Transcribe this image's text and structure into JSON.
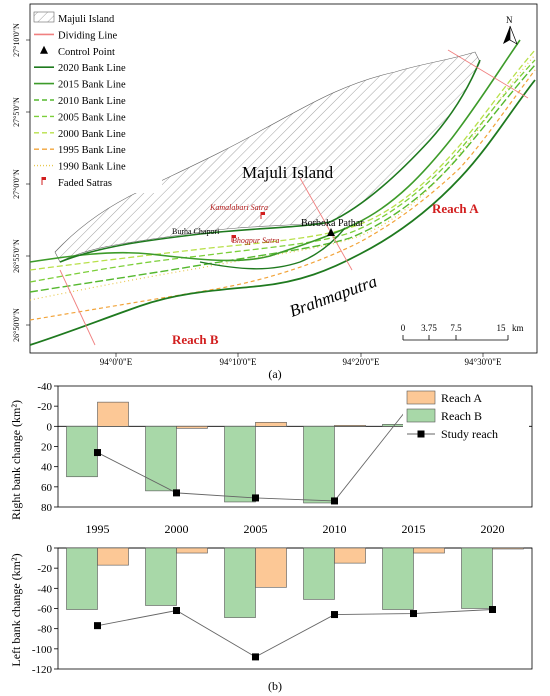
{
  "map": {
    "island_label": "Majuli Island",
    "river_label": "Brahmaputra",
    "reach_a_label": "Reach A",
    "reach_b_label": "Reach B",
    "north_label": "N",
    "sites": [
      {
        "label": "Borboka Pathar",
        "kind": "control-point"
      },
      {
        "label": "Burha Chapori",
        "kind": "place"
      },
      {
        "label": "Kamalabari Satra",
        "kind": "faded-satra"
      },
      {
        "label": "Bhogpur Satra",
        "kind": "faded-satra"
      }
    ],
    "legend": [
      {
        "label": "Majuli Island",
        "symbol": "hatch",
        "color": "#808080"
      },
      {
        "label": "Dividing Line",
        "symbol": "line",
        "color": "#f08080"
      },
      {
        "label": "Control Point",
        "symbol": "triangle",
        "color": "#000000"
      },
      {
        "label": "2020 Bank Line",
        "symbol": "line",
        "color": "#1f7a1f"
      },
      {
        "label": "2015 Bank Line",
        "symbol": "line",
        "color": "#3d9b2a"
      },
      {
        "label": "2010 Bank Line",
        "symbol": "dash",
        "color": "#55b82e"
      },
      {
        "label": "2005 Bank Line",
        "symbol": "dash",
        "color": "#7ccf3a"
      },
      {
        "label": "2000 Bank Line",
        "symbol": "dash",
        "color": "#b8e04a"
      },
      {
        "label": "1995 Bank Line",
        "symbol": "dash",
        "color": "#f2a43a"
      },
      {
        "label": "1990 Bank Line",
        "symbol": "dot",
        "color": "#e8c84e"
      },
      {
        "label": "Faded Satras",
        "symbol": "flag",
        "color": "#d21f1f"
      }
    ],
    "lat_labels": [
      "27°10'0\"N",
      "27°5'0\"N",
      "27°0'0\"N",
      "26°55'0\"N",
      "26°50'0\"N"
    ],
    "lon_labels": [
      "94°0'0\"E",
      "94°10'0\"E",
      "94°20'0\"E",
      "94°30'0\"E"
    ],
    "scale": {
      "ticks": [
        "0",
        "3.75",
        "7.5",
        "15"
      ],
      "unit": "km"
    },
    "caption": "(a)"
  },
  "chart_data": {
    "type": "bar",
    "caption": "(b)",
    "categories": [
      "1995",
      "2000",
      "2005",
      "2010",
      "2015",
      "2020"
    ],
    "right_bank": {
      "ylabel": "Right bank change (km²)",
      "ylim": [
        -40,
        80
      ],
      "yticks": [
        "80",
        "60",
        "40",
        "20",
        "0",
        "-20",
        "-40"
      ],
      "series": [
        {
          "name": "Reach A",
          "type": "bar",
          "color": "#fcc896",
          "values": [
            -24,
            2,
            -4,
            -1,
            -23,
            -21
          ]
        },
        {
          "name": "Reach B",
          "type": "bar",
          "color": "#a8d8a8",
          "values": [
            50,
            64,
            75,
            76,
            -2,
            12
          ]
        },
        {
          "name": "Study reach",
          "type": "line",
          "color": "#000000",
          "values": [
            26,
            66,
            71,
            74,
            -25,
            -9
          ]
        }
      ]
    },
    "left_bank": {
      "ylabel": "Left bank change (km²)",
      "ylim": [
        -120,
        0
      ],
      "yticks": [
        "0",
        "-20",
        "-40",
        "-60",
        "-80",
        "-100",
        "-120"
      ],
      "series": [
        {
          "name": "Reach A",
          "type": "bar",
          "color": "#fcc896",
          "values": [
            -17,
            -5,
            -39,
            -15,
            -5,
            -1
          ]
        },
        {
          "name": "Reach B",
          "type": "bar",
          "color": "#a8d8a8",
          "values": [
            -61,
            -57,
            -69,
            -51,
            -61,
            -60
          ]
        },
        {
          "name": "Study reach",
          "type": "line",
          "color": "#000000",
          "values": [
            -77,
            -62,
            -108,
            -66,
            -65,
            -61
          ]
        }
      ]
    },
    "legend": [
      "Reach A",
      "Reach B",
      "Study reach"
    ]
  }
}
